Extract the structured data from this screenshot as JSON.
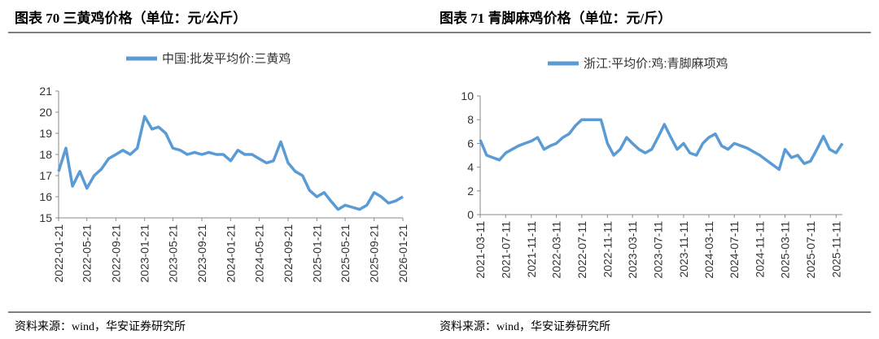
{
  "chart_data": [
    {
      "type": "line",
      "title": "图表 70 三黄鸡价格（单位：元/公斤）",
      "source": "资料来源：wind，华安证券研究所",
      "series": [
        {
          "name": "中国:批发平均价:三黄鸡",
          "color": "#5b9bd5",
          "values": [
            17.2,
            18.3,
            16.5,
            17.2,
            16.4,
            17.0,
            17.3,
            17.8,
            18.0,
            18.2,
            18.0,
            18.3,
            19.8,
            19.2,
            19.3,
            19.0,
            18.3,
            18.2,
            18.0,
            18.1,
            18.0,
            18.1,
            18.0,
            18.0,
            17.7,
            18.2,
            18.0,
            18.0,
            17.8,
            17.6,
            17.7,
            18.6,
            17.6,
            17.2,
            17.0,
            16.3,
            16.0,
            16.2,
            15.8,
            15.4,
            15.6,
            15.5,
            15.4,
            15.6,
            16.2,
            16.0,
            15.7,
            15.8,
            16.0
          ]
        }
      ],
      "x": [
        "2022-01-21",
        "2022-02-21",
        "2022-03-21",
        "2022-04-21",
        "2022-05-21",
        "2022-06-21",
        "2022-07-21",
        "2022-08-21",
        "2022-09-21",
        "2022-10-21",
        "2022-11-21",
        "2022-12-21",
        "2023-01-21",
        "2023-02-21",
        "2023-03-21",
        "2023-04-21",
        "2023-05-21",
        "2023-06-21",
        "2023-07-21",
        "2023-08-21",
        "2023-09-21",
        "2023-10-21",
        "2023-11-21",
        "2023-12-21",
        "2024-01-21",
        "2024-02-21",
        "2024-03-21",
        "2024-04-21",
        "2024-05-21",
        "2024-06-21",
        "2024-07-21",
        "2024-08-21",
        "2024-09-21",
        "2024-10-21",
        "2024-11-21",
        "2024-12-21",
        "2025-01-21",
        "2025-02-21",
        "2025-03-21",
        "2025-04-21",
        "2025-05-21",
        "2025-06-21",
        "2025-07-21",
        "2025-08-21",
        "2025-09-21",
        "2025-10-21",
        "2025-11-21",
        "2025-12-21",
        "2026-01-21"
      ],
      "xlim": [
        "2022-01-21",
        "2026-01-21"
      ],
      "xticks": [
        "2022-01-21",
        "2022-05-21",
        "2022-09-21",
        "2023-01-21",
        "2023-05-21",
        "2023-09-21",
        "2024-01-21",
        "2024-05-21",
        "2024-09-21",
        "2025-01-21",
        "2025-05-21",
        "2025-09-21",
        "2026-01-21"
      ],
      "ylim": [
        15,
        21
      ],
      "yticks": [
        15,
        16,
        17,
        18,
        19,
        20,
        21
      ]
    },
    {
      "type": "line",
      "title": "图表 71 青脚麻鸡价格（单位：元/斤）",
      "source": "资料来源：wind，华安证券研究所",
      "series": [
        {
          "name": "浙江:平均价:鸡:青脚麻项鸡",
          "color": "#5b9bd5",
          "values": [
            6.3,
            5.0,
            4.8,
            4.6,
            5.2,
            5.5,
            5.8,
            6.0,
            6.2,
            6.5,
            5.5,
            5.8,
            6.0,
            6.5,
            6.8,
            7.5,
            8.0,
            8.0,
            8.0,
            8.0,
            6.0,
            5.0,
            5.5,
            6.5,
            6.0,
            5.5,
            5.2,
            5.5,
            6.5,
            7.6,
            6.5,
            5.5,
            6.0,
            5.2,
            5.0,
            6.0,
            6.5,
            6.8,
            5.8,
            5.5,
            6.0,
            5.8,
            5.6,
            5.3,
            5.0,
            4.6,
            4.2,
            3.8,
            5.5,
            4.8,
            5.0,
            4.3,
            4.5,
            5.5,
            6.6,
            5.5,
            5.2,
            6.0
          ]
        }
      ],
      "x": [
        "2021-03-11",
        "2021-04-11",
        "2021-05-11",
        "2021-06-11",
        "2021-07-11",
        "2021-08-11",
        "2021-09-11",
        "2021-10-11",
        "2021-11-11",
        "2021-12-11",
        "2022-01-11",
        "2022-02-11",
        "2022-03-11",
        "2022-04-11",
        "2022-05-11",
        "2022-06-11",
        "2022-07-11",
        "2022-08-11",
        "2022-09-11",
        "2022-10-11",
        "2022-11-11",
        "2022-12-11",
        "2023-01-11",
        "2023-02-11",
        "2023-03-11",
        "2023-04-11",
        "2023-05-11",
        "2023-06-11",
        "2023-07-11",
        "2023-08-11",
        "2023-09-11",
        "2023-10-11",
        "2023-11-11",
        "2023-12-11",
        "2024-01-11",
        "2024-02-11",
        "2024-03-11",
        "2024-04-11",
        "2024-05-11",
        "2024-06-11",
        "2024-07-11",
        "2024-08-11",
        "2024-09-11",
        "2024-10-11",
        "2024-11-11",
        "2024-12-11",
        "2025-01-11",
        "2025-02-11",
        "2025-03-11",
        "2025-04-11",
        "2025-05-11",
        "2025-06-11",
        "2025-07-11",
        "2025-08-11",
        "2025-09-11",
        "2025-10-11",
        "2025-11-11",
        "2025-12-11"
      ],
      "xlim": [
        "2021-03-11",
        "2025-12-11"
      ],
      "xticks": [
        "2021-03-11",
        "2021-07-11",
        "2021-11-11",
        "2022-03-11",
        "2022-07-11",
        "2022-11-11",
        "2023-03-11",
        "2023-07-11",
        "2023-11-11",
        "2024-03-11",
        "2024-07-11",
        "2024-11-11",
        "2025-03-11",
        "2025-07-11",
        "2025-11-11"
      ],
      "ylim": [
        0,
        10
      ],
      "yticks": [
        0,
        2,
        4,
        6,
        8,
        10
      ]
    }
  ]
}
